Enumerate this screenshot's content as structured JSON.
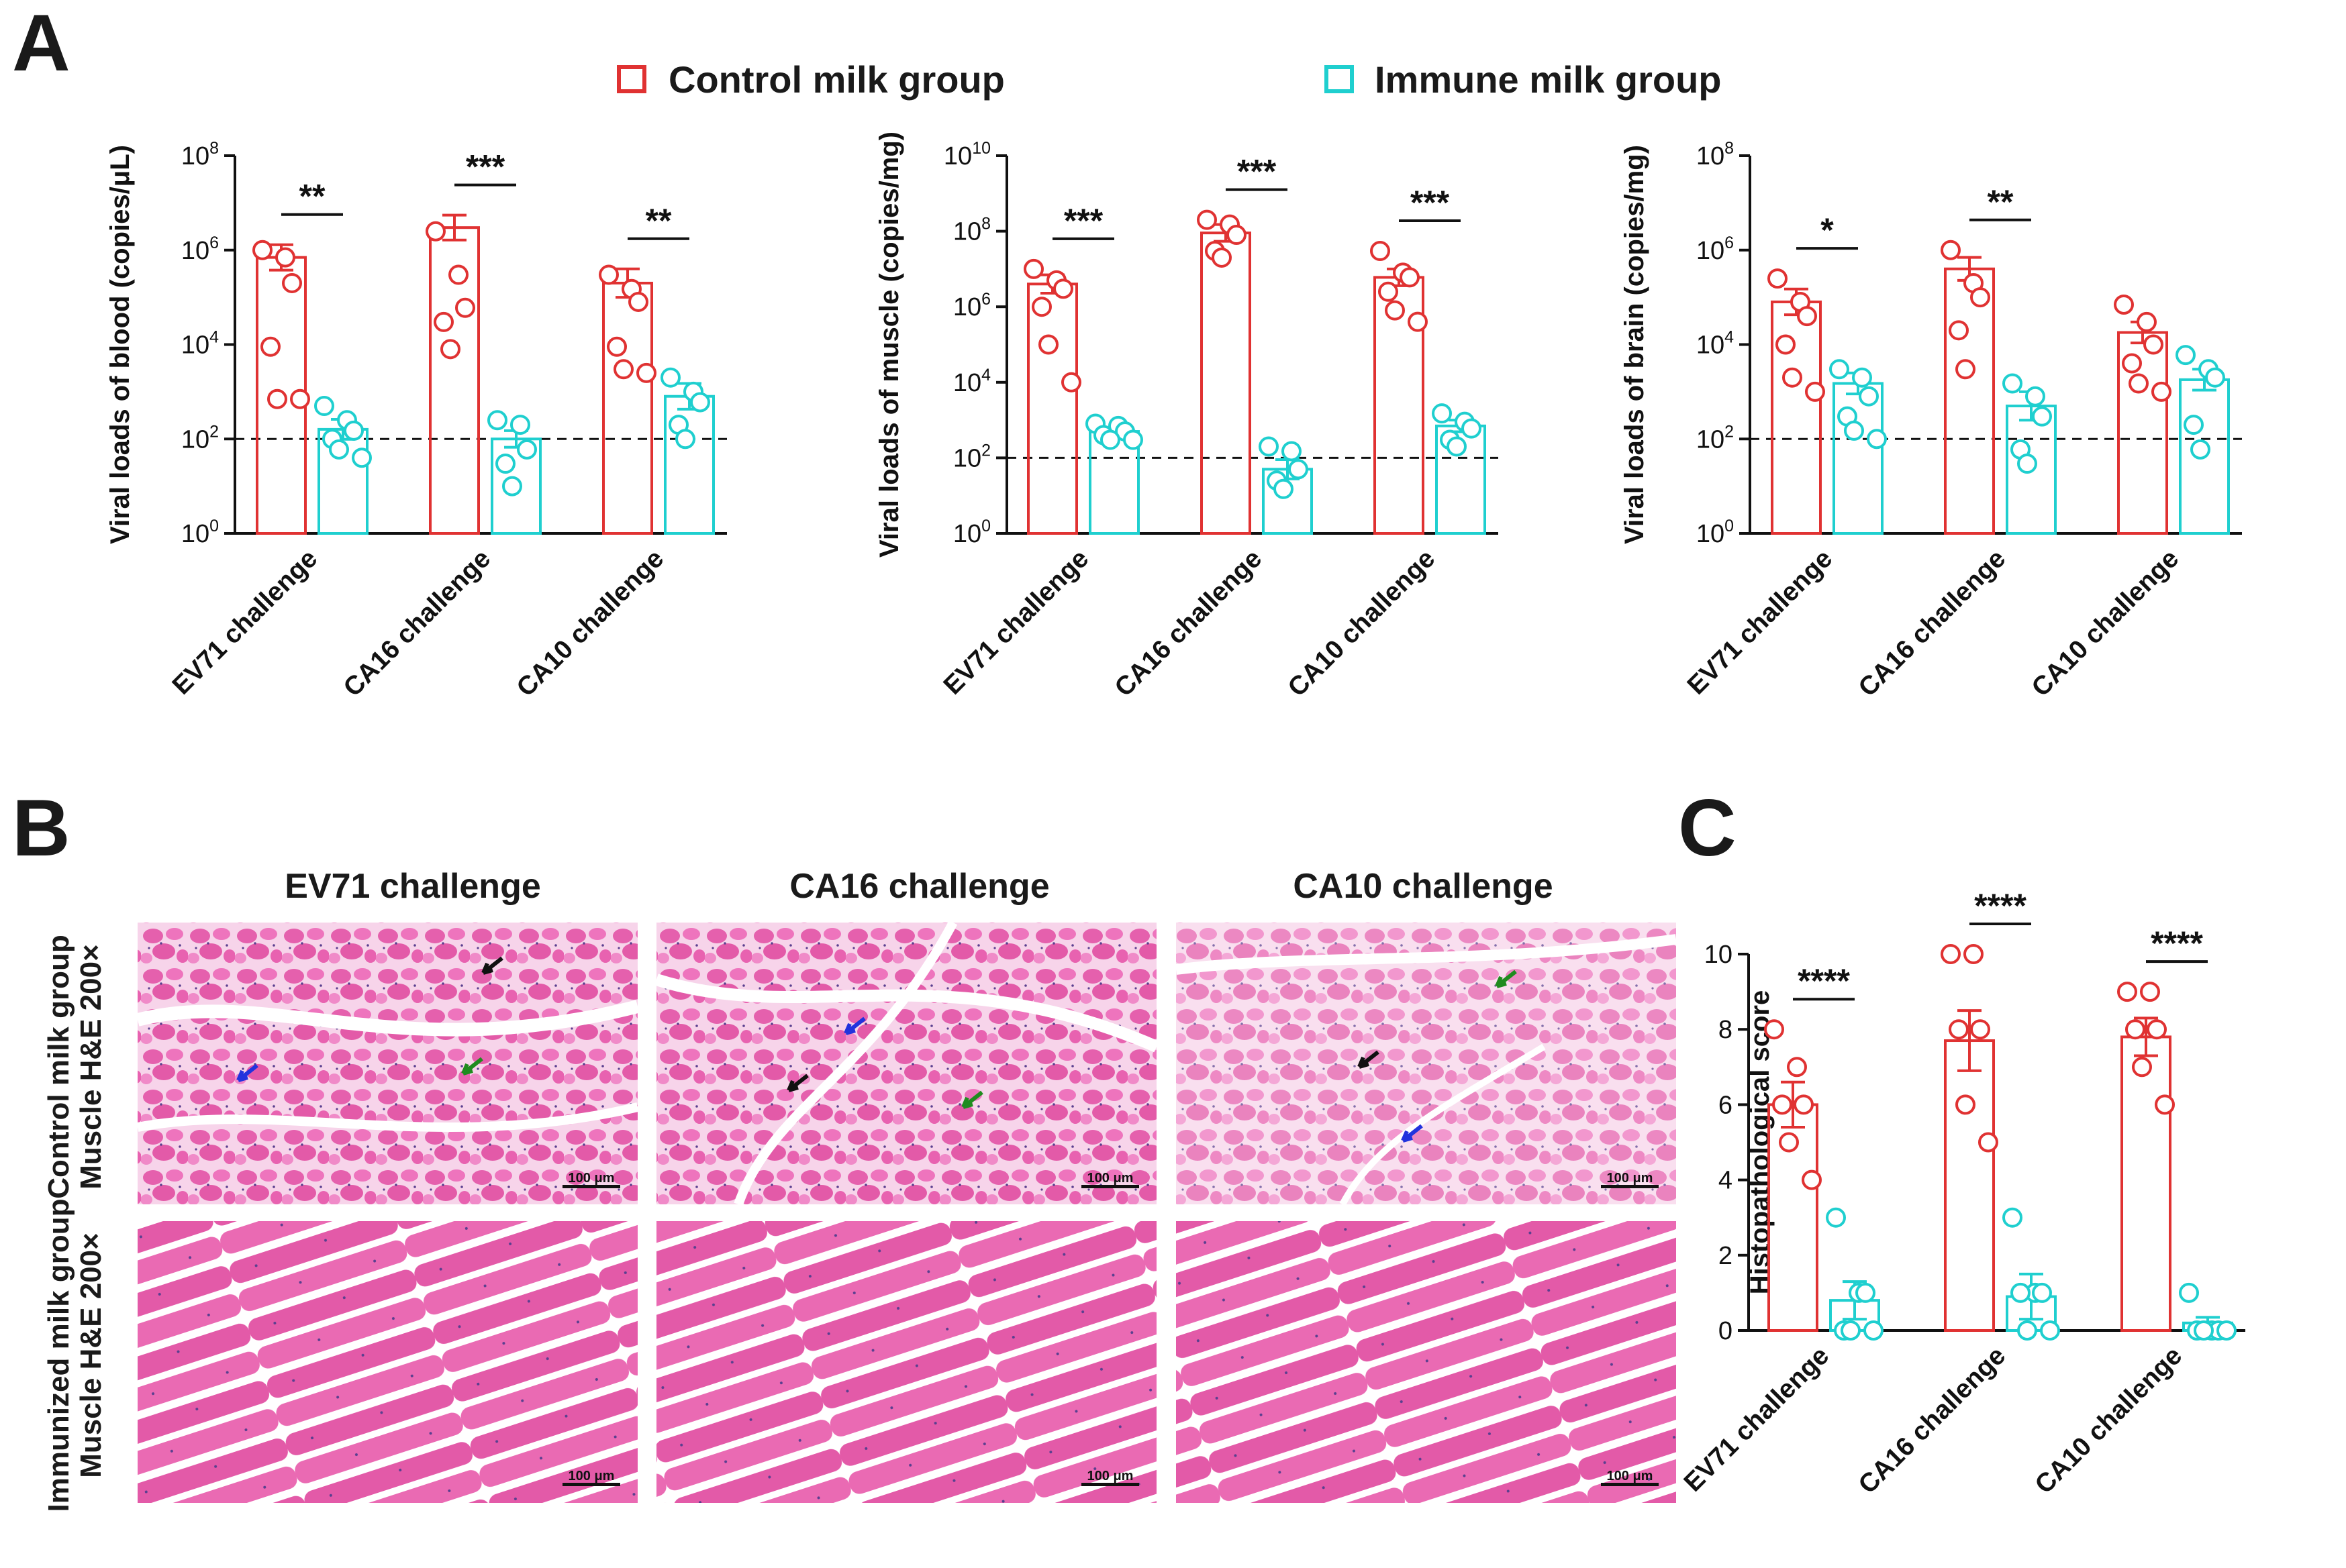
{
  "panel_labels": {
    "a": "A",
    "b": "B",
    "c": "C"
  },
  "legend": {
    "control": "Control milk group",
    "immune": "Immune milk group"
  },
  "colors": {
    "control": "#e03232",
    "immune": "#1fcfcf",
    "axis": "#111111",
    "tissue_dark": "#e35aa8",
    "tissue_light": "#f07cc0",
    "background": "#ffffff"
  },
  "chart_data": [
    {
      "id": "blood",
      "type": "bar",
      "scale": "log10",
      "ylabel": "Viral loads of blood (copies/μL)",
      "yticks": [
        {
          "base": "10",
          "exp": "0"
        },
        {
          "base": "10",
          "exp": "2"
        },
        {
          "base": "10",
          "exp": "4"
        },
        {
          "base": "10",
          "exp": "6"
        },
        {
          "base": "10",
          "exp": "8"
        }
      ],
      "ylim_exp": [
        0,
        8
      ],
      "detection_limit": 100,
      "categories": [
        "EV71 challenge",
        "CA16 challenge",
        "CA10 challenge"
      ],
      "series": [
        {
          "name": "Control milk group",
          "values": [
            700000,
            3000000,
            200000
          ],
          "sem_upper": [
            1300000,
            5500000,
            400000
          ],
          "points": [
            [
              1000000,
              700000,
              200000,
              9000,
              700,
              700
            ],
            [
              2500000,
              300000,
              60000,
              30000,
              8000
            ],
            [
              300000,
              150000,
              80000,
              9000,
              3000,
              2500
            ]
          ]
        },
        {
          "name": "Immune milk group",
          "values": [
            160,
            100,
            800
          ],
          "sem_upper": [
            260,
            150,
            1500
          ],
          "points": [
            [
              500,
              250,
              150,
              100,
              60,
              40
            ],
            [
              250,
              200,
              60,
              30,
              10
            ],
            [
              2000,
              1000,
              600,
              200,
              100
            ]
          ]
        }
      ],
      "significance": [
        "**",
        "***",
        "**"
      ]
    },
    {
      "id": "muscle",
      "type": "bar",
      "scale": "log10",
      "ylabel": "Viral loads of muscle (copies/mg)",
      "yticks": [
        {
          "base": "10",
          "exp": "0"
        },
        {
          "base": "10",
          "exp": "2"
        },
        {
          "base": "10",
          "exp": "4"
        },
        {
          "base": "10",
          "exp": "6"
        },
        {
          "base": "10",
          "exp": "8"
        },
        {
          "base": "10",
          "exp": "10"
        }
      ],
      "ylim_exp": [
        0,
        10
      ],
      "detection_limit": 100,
      "categories": [
        "EV71 challenge",
        "CA16 challenge",
        "CA10 challenge"
      ],
      "series": [
        {
          "name": "Control milk group",
          "values": [
            4000000,
            90000000,
            6000000
          ],
          "sem_upper": [
            7000000,
            150000000,
            10000000
          ],
          "points": [
            [
              10000000,
              5000000,
              3000000,
              1000000,
              100000,
              10000
            ],
            [
              200000000,
              150000000,
              80000000,
              30000000,
              20000000
            ],
            [
              30000000,
              8000000,
              6000000,
              2500000,
              800000,
              400000
            ]
          ]
        },
        {
          "name": "Immune milk group",
          "values": [
            500,
            50,
            700
          ],
          "sem_upper": [
            600,
            90,
            1000
          ],
          "points": [
            [
              800,
              700,
              500,
              400,
              300,
              300
            ],
            [
              200,
              150,
              50,
              25,
              15
            ],
            [
              1500,
              900,
              600,
              300,
              200
            ]
          ]
        }
      ],
      "significance": [
        "***",
        "***",
        "***"
      ]
    },
    {
      "id": "brain",
      "type": "bar",
      "scale": "log10",
      "ylabel": "Viral loads of brain (copies/mg)",
      "yticks": [
        {
          "base": "10",
          "exp": "0"
        },
        {
          "base": "10",
          "exp": "2"
        },
        {
          "base": "10",
          "exp": "4"
        },
        {
          "base": "10",
          "exp": "6"
        },
        {
          "base": "10",
          "exp": "8"
        }
      ],
      "ylim_exp": [
        0,
        8
      ],
      "detection_limit": 100,
      "categories": [
        "EV71 challenge",
        "CA16 challenge",
        "CA10 challenge"
      ],
      "series": [
        {
          "name": "Control milk group",
          "values": [
            80000,
            400000,
            18000
          ],
          "sem_upper": [
            150000,
            700000,
            30000
          ],
          "points": [
            [
              250000,
              80000,
              40000,
              10000,
              2000,
              1000
            ],
            [
              1000000,
              200000,
              100000,
              20000,
              3000
            ],
            [
              70000,
              30000,
              10000,
              4000,
              1500,
              1000
            ]
          ]
        },
        {
          "name": "Immune milk group",
          "values": [
            1500,
            500,
            1800
          ],
          "sem_upper": [
            2500,
            1000,
            3000
          ],
          "points": [
            [
              3000,
              2000,
              800,
              300,
              150,
              100
            ],
            [
              1500,
              800,
              300,
              60,
              30
            ],
            [
              6000,
              3000,
              2000,
              200,
              60
            ]
          ]
        }
      ],
      "significance": [
        "*",
        "**",
        ""
      ]
    },
    {
      "id": "histology",
      "type": "bar",
      "scale": "linear",
      "ylabel": "Histopathological score",
      "yticks": [
        "0",
        "2",
        "4",
        "6",
        "8",
        "10"
      ],
      "ylim": [
        0,
        10
      ],
      "categories": [
        "EV71 challenge",
        "CA16 challenge",
        "CA10 challenge"
      ],
      "series": [
        {
          "name": "Control milk group",
          "values": [
            6.0,
            7.7,
            7.8
          ],
          "sem_upper": [
            6.6,
            8.5,
            8.3
          ],
          "points": [
            [
              8,
              7,
              6,
              6,
              5,
              4
            ],
            [
              10,
              10,
              8,
              8,
              6,
              5
            ],
            [
              9,
              9,
              8,
              8,
              7,
              6
            ]
          ]
        },
        {
          "name": "Immune milk group",
          "values": [
            0.8,
            0.9,
            0.2
          ],
          "sem_upper": [
            1.3,
            1.5,
            0.35
          ],
          "points": [
            [
              3,
              1,
              1,
              0,
              0,
              0
            ],
            [
              3,
              1,
              1,
              1,
              0,
              0
            ],
            [
              1,
              0,
              0,
              0,
              0,
              0
            ]
          ]
        }
      ],
      "significance": [
        "****",
        "****",
        "****"
      ]
    }
  ],
  "histology": {
    "columns": [
      "EV71 challenge",
      "CA16 challenge",
      "CA10 challenge"
    ],
    "rows": [
      {
        "label_line1": "Control milk group",
        "label_line2": "Muscle H&E 200×"
      },
      {
        "label_line1": "Immunized milk group",
        "label_line2": "Muscle H&E 200×"
      }
    ],
    "scale_bar": "100 μm"
  }
}
